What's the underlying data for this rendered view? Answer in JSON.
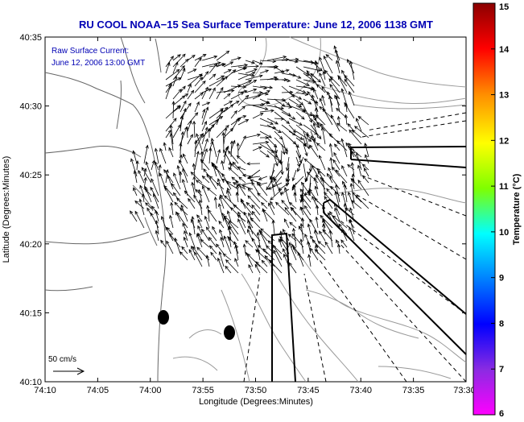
{
  "title": "RU COOL  NOAA−15  Sea Surface Temperature:  June 12, 2006 1138 GMT",
  "annotation_lines": [
    "Raw Surface Current:",
    "June 12, 2006 13:00 GMT"
  ],
  "scale_label": "50 cm/s",
  "axes": {
    "xlabel": "Longitude (Degrees:Minutes)",
    "ylabel": "Latitude (Degrees:Minutes)",
    "xticks": [
      "74:10",
      "74:05",
      "74:00",
      "73:55",
      "73:50",
      "73:45",
      "73:40",
      "73:35",
      "73:30"
    ],
    "yticks": [
      "40:35",
      "40:30",
      "40:25",
      "40:20",
      "40:15",
      "40:10"
    ]
  },
  "colorbar": {
    "label": "Temperature (°C)",
    "ticks": [
      "15",
      "14",
      "13",
      "12",
      "11",
      "10",
      "9",
      "8",
      "7",
      "6"
    ],
    "colors": [
      "#8b0000",
      "#ff0000",
      "#ff8c00",
      "#ffff00",
      "#7fff00",
      "#00ffff",
      "#0080ff",
      "#0000ff",
      "#8a2be2",
      "#ff00ff"
    ]
  },
  "colors": {
    "title": "#0000b4",
    "annotation": "#0000b4",
    "contour": "#9a9a9a",
    "coastline": "#666666",
    "vector": "#000000"
  }
}
